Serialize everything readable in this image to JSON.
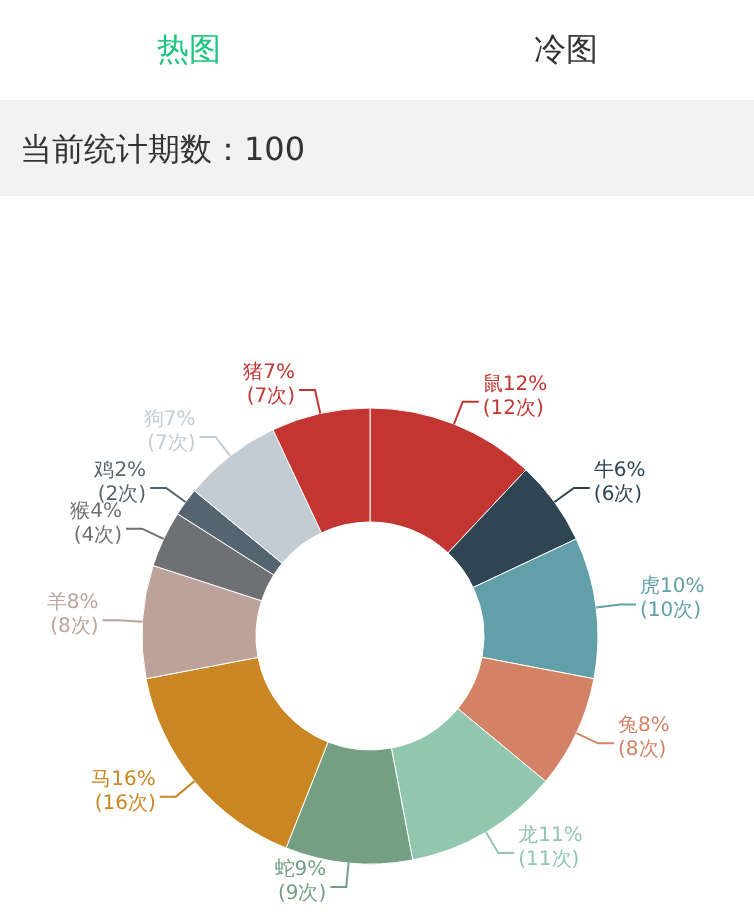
{
  "chart_data": {
    "type": "donut",
    "title": "当前统计期数：100",
    "annotations": [
      "热图",
      "冷图"
    ],
    "categories": [
      "鼠",
      "牛",
      "虎",
      "兔",
      "龙",
      "蛇",
      "马",
      "羊",
      "猴",
      "鸡",
      "狗",
      "猪"
    ],
    "values": [
      12,
      6,
      10,
      8,
      11,
      9,
      16,
      8,
      4,
      2,
      7,
      7
    ],
    "colors": [
      "#c23531",
      "#2f4554",
      "#61a0a8",
      "#d48265",
      "#91c7ae",
      "#749f83",
      "#ca8622",
      "#bda29a",
      "#6e7074",
      "#546570",
      "#c4ccd3",
      "#c23531"
    ],
    "value_labels": [
      "12%\n(12次)",
      "6%\n(6次)",
      "10%\n(10次)",
      "8%\n(8次)",
      "11%\n(11次)",
      "9%\n(9次)",
      "16%\n(16次)",
      "8%\n(8次)",
      "4%\n(4次)",
      "2%\n(2次)",
      "7%\n(7次)",
      "7%\n(7次)"
    ],
    "legend": false
  }
}
